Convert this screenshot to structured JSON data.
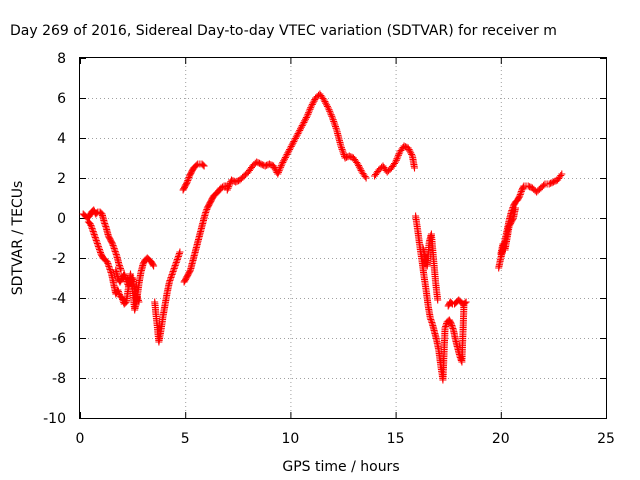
{
  "chart_data": {
    "type": "scatter",
    "title": "Day 269 of 2016, Sidereal Day-to-day VTEC variation (SDTVAR) for receiver m",
    "xlabel": "GPS time / hours",
    "ylabel": "SDTVAR / TECUs",
    "xlim": [
      0,
      25
    ],
    "ylim": [
      -10,
      8
    ],
    "xticks": [
      0,
      5,
      10,
      15,
      20,
      25
    ],
    "yticks": [
      -10,
      -8,
      -6,
      -4,
      -2,
      0,
      2,
      4,
      6,
      8
    ],
    "grid": true,
    "marker": "plus",
    "color": "#ff0000",
    "segments": [
      {
        "x": [
          0.15,
          0.25,
          0.35,
          0.45,
          0.55,
          0.65,
          0.75,
          0.85,
          0.95,
          1.05,
          1.15,
          1.25,
          1.35,
          1.45,
          1.55,
          1.65,
          1.75,
          1.85,
          1.95
        ],
        "y": [
          0.2,
          0.1,
          0.0,
          0.1,
          0.3,
          0.4,
          0.2,
          0.3,
          0.3,
          0.2,
          -0.2,
          -0.5,
          -0.9,
          -1.1,
          -1.3,
          -1.6,
          -1.9,
          -2.3,
          -2.6
        ]
      },
      {
        "x": [
          0.4,
          0.5,
          0.6,
          0.7,
          0.8,
          0.9,
          1.0,
          1.1,
          1.2,
          1.3,
          1.4,
          1.5,
          1.6,
          1.7,
          1.8,
          1.9,
          2.0,
          2.1,
          2.2,
          2.3,
          2.4,
          2.5,
          2.6,
          2.7,
          2.8,
          2.9,
          3.0,
          3.1,
          3.2,
          3.3,
          3.4,
          3.5
        ],
        "y": [
          -0.2,
          -0.3,
          -0.6,
          -0.9,
          -1.2,
          -1.5,
          -1.8,
          -2.0,
          -2.1,
          -2.2,
          -2.5,
          -2.8,
          -3.3,
          -3.8,
          -3.6,
          -3.9,
          -4.0,
          -4.3,
          -4.2,
          -3.5,
          -2.8,
          -3.6,
          -4.6,
          -4.1,
          -3.3,
          -2.7,
          -2.3,
          -2.1,
          -2.0,
          -2.1,
          -2.2,
          -2.4
        ]
      },
      {
        "x": [
          1.7,
          1.8,
          1.9,
          2.0,
          2.1,
          2.2,
          2.3,
          2.4,
          2.5,
          2.6,
          2.7,
          2.8
        ],
        "y": [
          -2.6,
          -3.0,
          -3.2,
          -3.0,
          -2.8,
          -3.1,
          -3.4,
          -3.2,
          -3.0,
          -3.6,
          -3.9,
          -4.2
        ]
      },
      {
        "x": [
          3.55,
          3.65,
          3.75,
          3.85,
          3.95,
          4.05,
          4.15,
          4.25,
          4.35,
          4.45,
          4.55,
          4.65,
          4.75
        ],
        "y": [
          -4.2,
          -5.2,
          -6.2,
          -5.6,
          -4.9,
          -4.3,
          -3.7,
          -3.2,
          -2.9,
          -2.6,
          -2.3,
          -2.0,
          -1.7
        ]
      },
      {
        "x": [
          4.9,
          5.0,
          5.1,
          5.2,
          5.3,
          5.4,
          5.5,
          5.6,
          5.7,
          5.8,
          5.9
        ],
        "y": [
          1.4,
          1.6,
          1.8,
          2.1,
          2.3,
          2.5,
          2.6,
          2.7,
          2.7,
          2.7,
          2.6
        ]
      },
      {
        "x": [
          4.95,
          5.05,
          5.15,
          5.25,
          5.35,
          5.45,
          5.55,
          5.65,
          5.75,
          5.85,
          5.95,
          6.05,
          6.15,
          6.25,
          6.35,
          6.45,
          6.55,
          6.7,
          6.85,
          7.0
        ],
        "y": [
          -3.2,
          -3.0,
          -2.8,
          -2.6,
          -2.2,
          -1.8,
          -1.4,
          -1.0,
          -0.6,
          -0.2,
          0.2,
          0.5,
          0.7,
          0.9,
          1.1,
          1.2,
          1.3,
          1.5,
          1.6,
          1.6
        ]
      },
      {
        "x": [
          7.0,
          7.2,
          7.4,
          7.6,
          7.8,
          8.0,
          8.2,
          8.4,
          8.6,
          8.8,
          9.0,
          9.2,
          9.4,
          9.6,
          9.8,
          10.0,
          10.2,
          10.4,
          10.6,
          10.8,
          11.0,
          11.2,
          11.4,
          11.6,
          11.8,
          12.0,
          12.2,
          12.4,
          12.6,
          12.8,
          13.0,
          13.2,
          13.4,
          13.6
        ],
        "y": [
          1.4,
          1.9,
          1.8,
          1.9,
          2.1,
          2.3,
          2.6,
          2.8,
          2.7,
          2.6,
          2.7,
          2.6,
          2.2,
          2.7,
          3.1,
          3.5,
          3.9,
          4.3,
          4.7,
          5.1,
          5.6,
          6.0,
          6.2,
          5.9,
          5.5,
          5.0,
          4.4,
          3.6,
          3.0,
          3.1,
          3.0,
          2.7,
          2.3,
          2.0
        ]
      },
      {
        "x": [
          14.0,
          14.2,
          14.4,
          14.6,
          14.8,
          15.0,
          15.2,
          15.4,
          15.6,
          15.8,
          15.9
        ],
        "y": [
          2.1,
          2.4,
          2.6,
          2.3,
          2.5,
          2.8,
          3.3,
          3.6,
          3.5,
          3.1,
          2.5
        ]
      },
      {
        "x": [
          15.95,
          16.05,
          16.15,
          16.25,
          16.35,
          16.45,
          16.55,
          16.65,
          16.75,
          16.85,
          16.95,
          17.05,
          17.15,
          17.25,
          17.35,
          17.45,
          17.55,
          17.65,
          17.75,
          17.85,
          17.95,
          18.05,
          18.15,
          18.25,
          18.35
        ],
        "y": [
          0.1,
          -0.6,
          -1.4,
          -2.1,
          -2.9,
          -3.6,
          -4.4,
          -5.0,
          -5.3,
          -5.7,
          -6.1,
          -6.6,
          -7.4,
          -8.1,
          -5.5,
          -5.2,
          -5.1,
          -5.3,
          -5.6,
          -6.1,
          -6.5,
          -6.9,
          -7.2,
          -4.3,
          -4.2
        ]
      },
      {
        "x": [
          16.3,
          16.4,
          16.5,
          16.6,
          16.7,
          16.8,
          16.9,
          17.0
        ],
        "y": [
          -1.5,
          -1.9,
          -2.4,
          -1.2,
          -0.8,
          -2.0,
          -3.2,
          -4.1
        ]
      },
      {
        "x": [
          17.5,
          17.6,
          17.7,
          17.8,
          17.9,
          18.0,
          18.1,
          18.2
        ],
        "y": [
          -4.4,
          -4.2,
          -4.3,
          -4.3,
          -4.2,
          -4.1,
          -4.2,
          -4.3
        ]
      },
      {
        "x": [
          19.9,
          20.0,
          20.1,
          20.2,
          20.3,
          20.4,
          20.5,
          20.6,
          20.7,
          20.8,
          20.9,
          21.0,
          21.1,
          21.3,
          21.5,
          21.7,
          21.9,
          22.1,
          22.3,
          22.5,
          22.7,
          22.9
        ],
        "y": [
          -2.5,
          -2.0,
          -1.6,
          -1.1,
          -0.6,
          -0.1,
          0.3,
          0.6,
          0.8,
          0.9,
          1.1,
          1.4,
          1.6,
          1.6,
          1.5,
          1.3,
          1.5,
          1.7,
          1.7,
          1.8,
          1.9,
          2.2
        ]
      },
      {
        "x": [
          20.0,
          20.1,
          20.2,
          20.3,
          20.4,
          20.5,
          20.6,
          20.7
        ],
        "y": [
          -1.8,
          -1.3,
          -1.6,
          -1.0,
          -0.4,
          -0.2,
          0.0,
          0.5
        ]
      }
    ]
  }
}
